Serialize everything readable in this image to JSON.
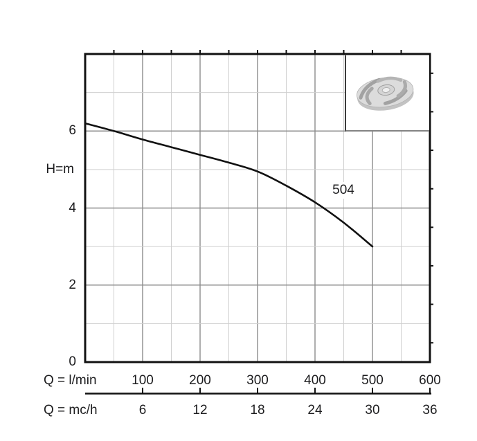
{
  "chart_data": {
    "type": "line",
    "title": "",
    "curve_label": "504",
    "ylabel": "H=m",
    "xlabel_primary": "Q = l/min",
    "xlabel_secondary": "Q = mc/h",
    "xlim_lmin": [
      0,
      600
    ],
    "ylim_m": [
      0,
      8
    ],
    "x_major_ticks_lmin": [
      100,
      200,
      300,
      400,
      500,
      600
    ],
    "x_minor_step_lmin": 50,
    "x_ticks_mch": [
      6,
      12,
      18,
      24,
      30,
      36
    ],
    "y_labeled_ticks_m": [
      0,
      2,
      4,
      6
    ],
    "y_grid_step_m": 1,
    "grid": "on",
    "legend": "none",
    "series": [
      {
        "name": "504",
        "points_lmin_h": [
          [
            0,
            6.2
          ],
          [
            50,
            6.0
          ],
          [
            100,
            5.78
          ],
          [
            150,
            5.58
          ],
          [
            200,
            5.38
          ],
          [
            250,
            5.18
          ],
          [
            300,
            4.95
          ],
          [
            350,
            4.58
          ],
          [
            400,
            4.15
          ],
          [
            450,
            3.62
          ],
          [
            500,
            3.0
          ]
        ]
      }
    ],
    "colors": {
      "curve": "#111111",
      "axis": "#111111",
      "grid_major": "#8c8c8c",
      "grid_minor": "#cfcfcf",
      "text": "#1d1d1f",
      "background": "#ffffff"
    }
  },
  "decorations": {
    "impeller_image": "pump-impeller-photo"
  }
}
